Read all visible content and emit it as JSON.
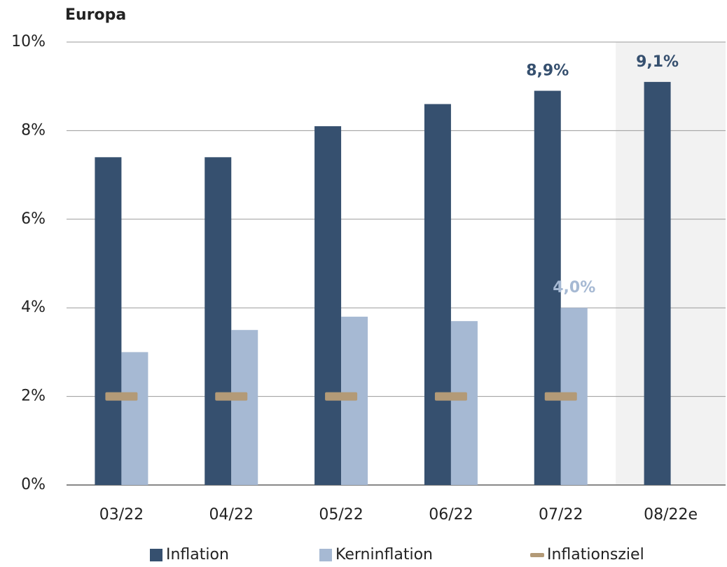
{
  "chart_data": {
    "type": "bar",
    "title": "Europa",
    "categories": [
      "03/22",
      "04/22",
      "05/22",
      "06/22",
      "07/22",
      "08/22e"
    ],
    "series": [
      {
        "name": "Inflation",
        "color": "#36506f",
        "values": [
          7.4,
          7.4,
          8.1,
          8.6,
          8.9,
          9.1
        ],
        "value_labels": [
          null,
          null,
          null,
          null,
          "8,9%",
          "9,1%"
        ]
      },
      {
        "name": "Kerninflation",
        "color": "#a6b9d3",
        "values": [
          3.0,
          3.5,
          3.8,
          3.7,
          4.0,
          null
        ],
        "value_labels": [
          null,
          null,
          null,
          null,
          "4,0%",
          null
        ]
      },
      {
        "name": "Inflationsziel",
        "color": "#b39a77",
        "values": [
          2,
          2,
          2,
          2,
          2,
          null
        ],
        "marker": "dash"
      }
    ],
    "ylim": [
      0,
      10
    ],
    "yticks": [
      {
        "value": 0,
        "label": "0%"
      },
      {
        "value": 2,
        "label": "2%"
      },
      {
        "value": 4,
        "label": "4%"
      },
      {
        "value": 6,
        "label": "6%"
      },
      {
        "value": 8,
        "label": "8%"
      },
      {
        "value": 10,
        "label": "10%"
      }
    ],
    "grid": true,
    "shaded_category_index": 5,
    "legend": "bottom"
  }
}
